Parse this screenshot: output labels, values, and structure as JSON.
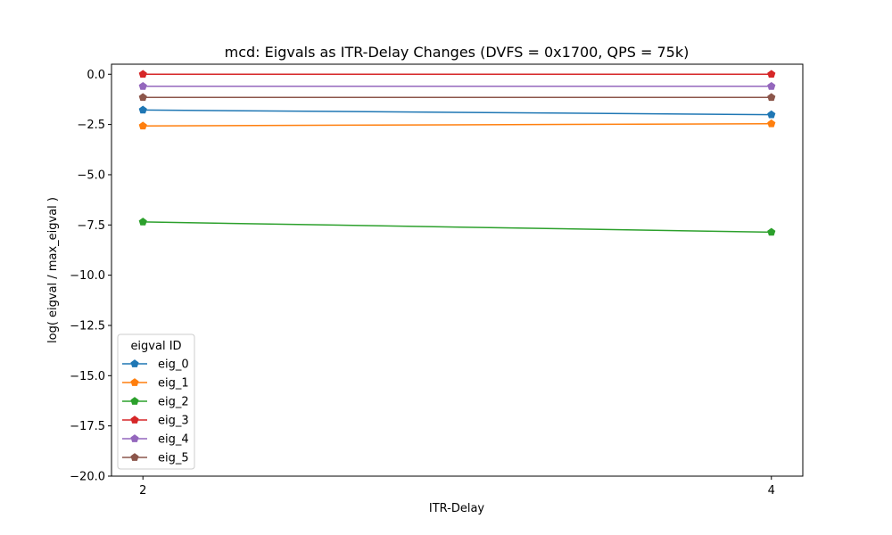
{
  "chart_data": {
    "type": "line",
    "title": "mcd: Eigvals as ITR-Delay Changes (DVFS = 0x1700, QPS = 75k)",
    "xlabel": "ITR-Delay",
    "ylabel": "log( eigval / max_eigval )",
    "x": [
      2,
      4
    ],
    "xticks": [
      "2",
      "4"
    ],
    "xlim": [
      1.9,
      4.1
    ],
    "ylim": [
      -20.0,
      0.5
    ],
    "yticks": [
      0.0,
      -2.5,
      -5.0,
      -7.5,
      -10.0,
      -12.5,
      -15.0,
      -17.5,
      -20.0
    ],
    "ytick_labels": [
      "0.0",
      "−2.5",
      "−5.0",
      "−7.5",
      "−10.0",
      "−12.5",
      "−15.0",
      "−17.5",
      "−20.0"
    ],
    "grid": false,
    "marker": "pentagon",
    "legend": {
      "title": "eigval ID",
      "placement": "lower-left"
    },
    "series": [
      {
        "name": "eig_0",
        "values": [
          -1.78,
          -2.01
        ],
        "color": "#1f77b4"
      },
      {
        "name": "eig_1",
        "values": [
          -2.57,
          -2.46
        ],
        "color": "#ff7f0e"
      },
      {
        "name": "eig_2",
        "values": [
          -7.35,
          -7.86
        ],
        "color": "#2ca02c"
      },
      {
        "name": "eig_3",
        "values": [
          0.0,
          0.0
        ],
        "color": "#d62728"
      },
      {
        "name": "eig_4",
        "values": [
          -0.6,
          -0.6
        ],
        "color": "#9467bd"
      },
      {
        "name": "eig_5",
        "values": [
          -1.15,
          -1.15
        ],
        "color": "#8c564b"
      }
    ]
  }
}
